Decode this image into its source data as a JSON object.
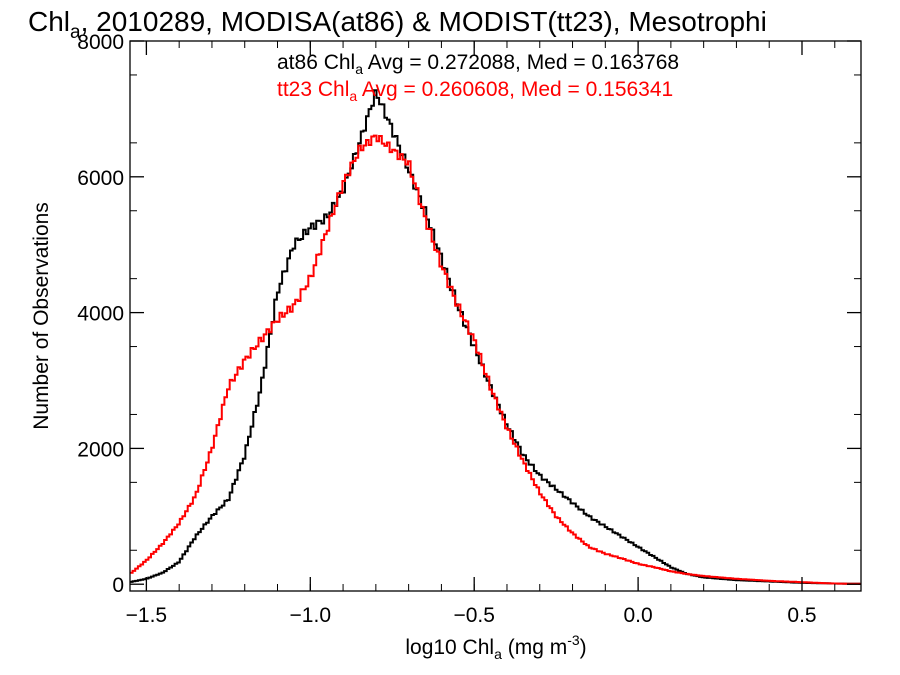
{
  "chart_data": {
    "type": "line",
    "title": {
      "prefix": "Chl",
      "sub": "a",
      "rest": ", 2010289, MODISA(at86) & MODIST(tt23), Mesotrophi"
    },
    "xlabel": {
      "prefix": "log10 Chl",
      "sub": "a",
      "mid": " (mg m",
      "sup": "-3",
      "suffix": ")"
    },
    "ylabel": "Number of Observations",
    "xlim": [
      -1.55,
      0.68
    ],
    "ylim": [
      -100,
      8000
    ],
    "x_ticks": [
      -1.5,
      -1.0,
      -0.5,
      0.0,
      0.5
    ],
    "x_tick_labels": [
      "−1.5",
      "−1.0",
      "−0.5",
      "0.0",
      "0.5"
    ],
    "y_ticks": [
      0,
      2000,
      4000,
      6000,
      8000
    ],
    "y_tick_labels": [
      "0",
      "2000",
      "4000",
      "6000",
      "8000"
    ],
    "annotations": [
      {
        "prefix": "at86 Chl",
        "sub": "a",
        "rest": " Avg = 0.272088, Med = 0.163768",
        "color": "#000000"
      },
      {
        "prefix": "tt23 Chl",
        "sub": "a",
        "rest": " Avg = 0.260608, Med = 0.156341",
        "color": "#ff0000"
      }
    ],
    "series": [
      {
        "color": "#000000",
        "x": [
          -1.55,
          -1.5,
          -1.45,
          -1.4,
          -1.35,
          -1.3,
          -1.25,
          -1.2,
          -1.15,
          -1.1,
          -1.05,
          -1.0,
          -0.95,
          -0.9,
          -0.85,
          -0.8,
          -0.75,
          -0.7,
          -0.65,
          -0.6,
          -0.55,
          -0.5,
          -0.45,
          -0.4,
          -0.35,
          -0.3,
          -0.25,
          -0.2,
          -0.15,
          -0.1,
          -0.05,
          0.0,
          0.05,
          0.1,
          0.15,
          0.2,
          0.3,
          0.4,
          0.5,
          0.6,
          0.68
        ],
        "y": [
          30,
          80,
          170,
          330,
          700,
          1000,
          1250,
          1900,
          2900,
          4300,
          5000,
          5250,
          5400,
          5800,
          6500,
          7250,
          6700,
          6100,
          5500,
          4800,
          4100,
          3500,
          2900,
          2350,
          1900,
          1600,
          1400,
          1200,
          1000,
          850,
          700,
          550,
          400,
          250,
          150,
          100,
          60,
          40,
          20,
          10,
          5
        ]
      },
      {
        "color": "#ff0000",
        "x": [
          -1.55,
          -1.5,
          -1.45,
          -1.4,
          -1.35,
          -1.3,
          -1.25,
          -1.2,
          -1.15,
          -1.1,
          -1.05,
          -1.0,
          -0.95,
          -0.9,
          -0.85,
          -0.8,
          -0.75,
          -0.7,
          -0.65,
          -0.6,
          -0.55,
          -0.5,
          -0.45,
          -0.4,
          -0.35,
          -0.3,
          -0.25,
          -0.2,
          -0.15,
          -0.1,
          -0.05,
          0.0,
          0.05,
          0.1,
          0.15,
          0.2,
          0.3,
          0.4,
          0.5,
          0.6,
          0.68
        ],
        "y": [
          150,
          350,
          600,
          900,
          1300,
          2000,
          2900,
          3300,
          3600,
          3900,
          4100,
          4500,
          5200,
          5900,
          6400,
          6600,
          6400,
          6200,
          5400,
          4700,
          4100,
          3600,
          2900,
          2300,
          1800,
          1350,
          1000,
          750,
          550,
          450,
          380,
          300,
          250,
          190,
          150,
          120,
          80,
          50,
          30,
          10,
          5
        ]
      }
    ]
  }
}
